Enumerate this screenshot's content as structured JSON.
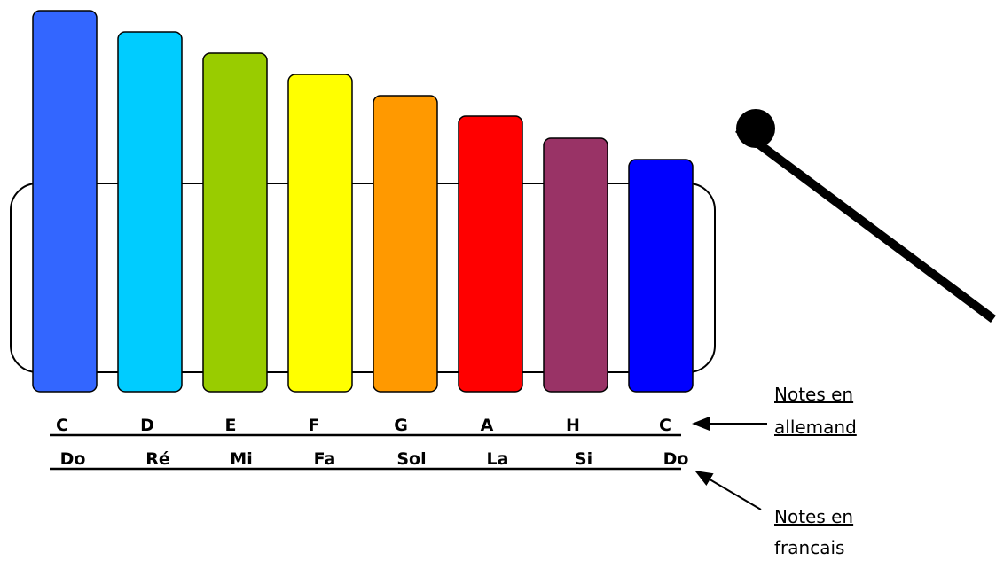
{
  "german_notes": [
    "C",
    "D",
    "E",
    "F",
    "G",
    "A",
    "H",
    "C"
  ],
  "french_notes": [
    "Do",
    "Ré",
    "Mi",
    "Fa",
    "Sol",
    "La",
    "Si",
    "Do"
  ],
  "annotations": [
    {
      "lines": [
        "Notes en",
        "allemand"
      ]
    },
    {
      "lines": [
        "Notes en",
        "francais"
      ]
    }
  ]
}
